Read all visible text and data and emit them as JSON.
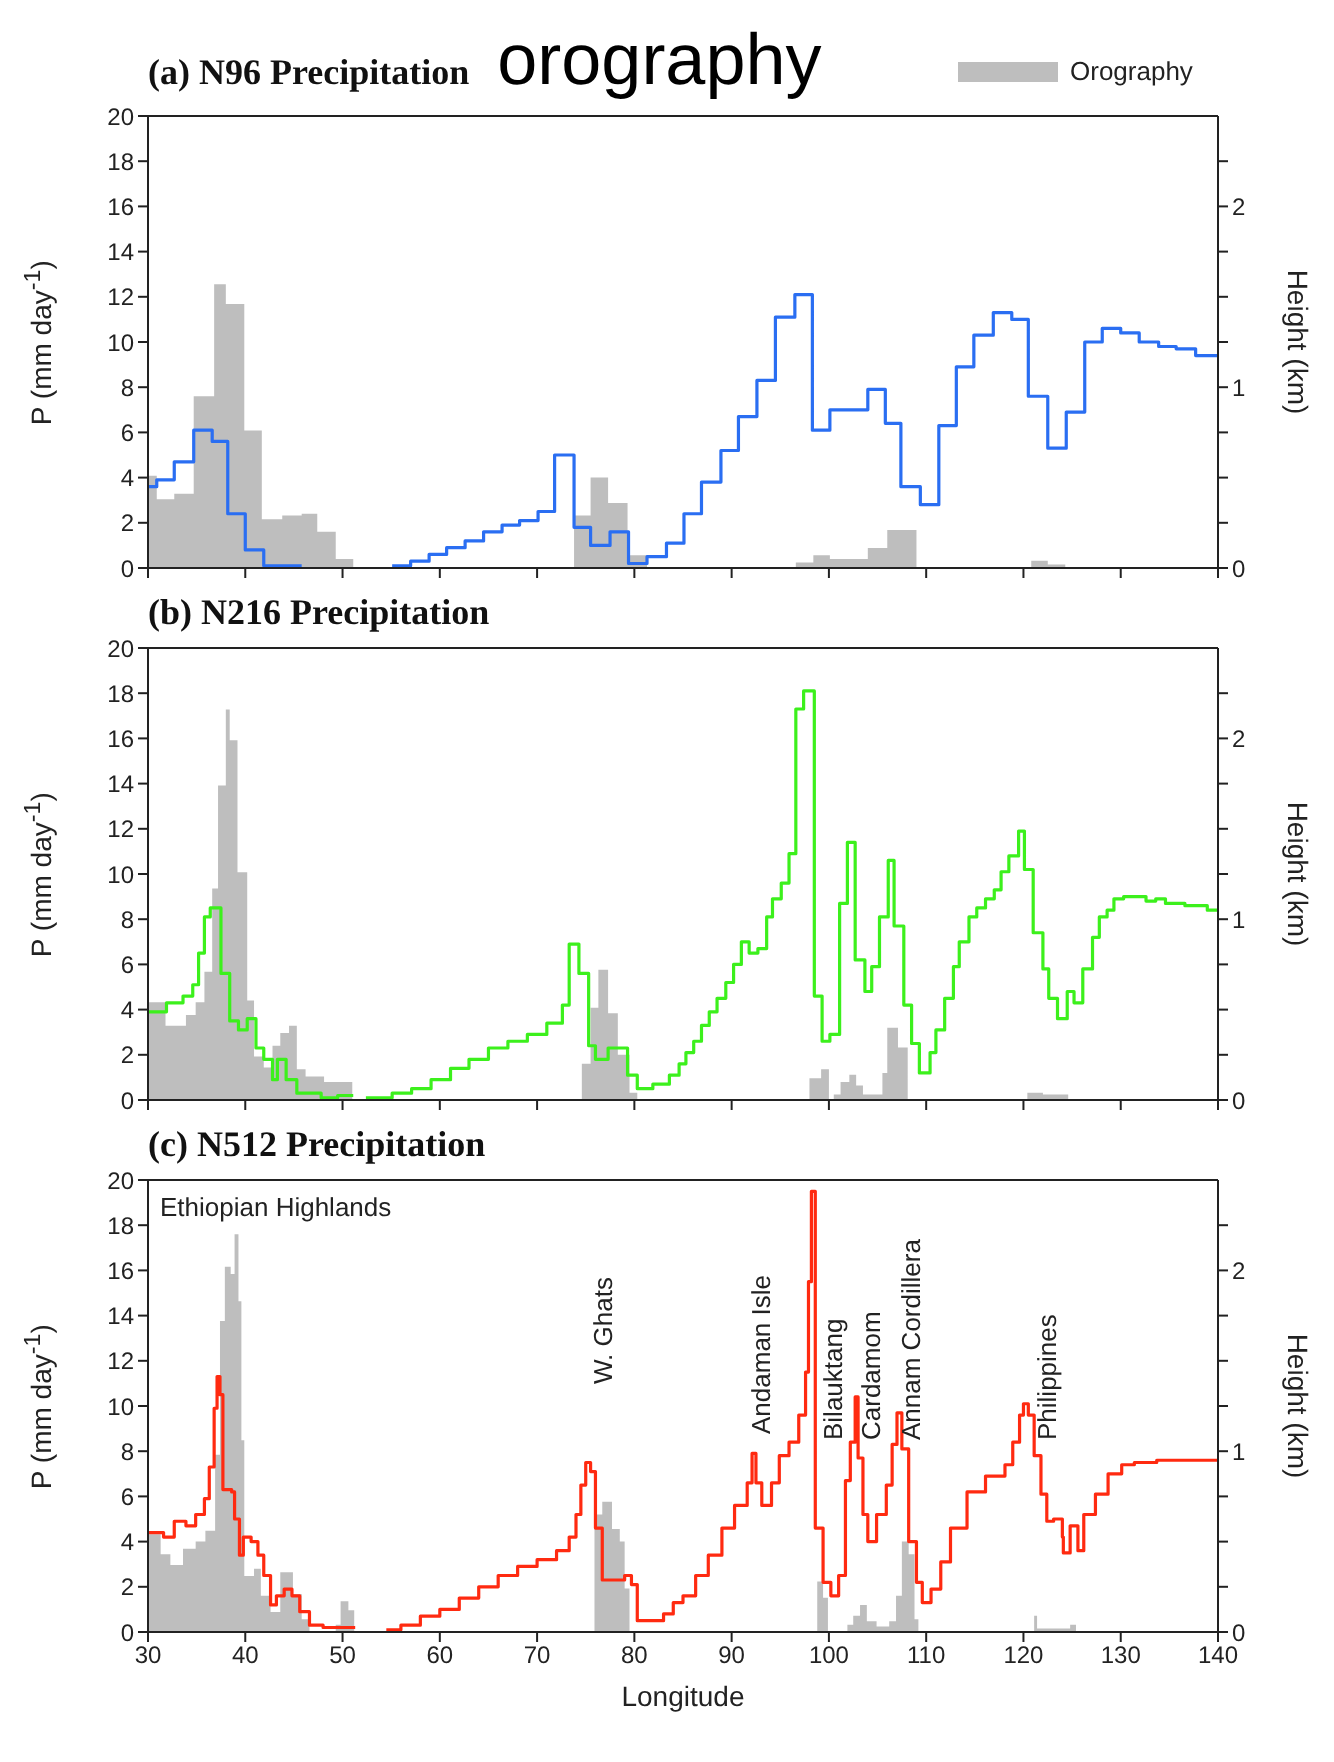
{
  "chart_data": [
    {
      "type": "step",
      "title": "(a) N96 Precipitation",
      "subtitle": "orography",
      "ylabel": "P (mm day$^{-1}$)",
      "y2label": "Height (km)",
      "xlim": [
        30,
        140
      ],
      "xticks": [
        30,
        40,
        50,
        60,
        70,
        80,
        90,
        100,
        110,
        120,
        130,
        140
      ],
      "ylim": [
        0,
        20
      ],
      "yticks": [
        0,
        2,
        4,
        6,
        8,
        10,
        12,
        14,
        16,
        18,
        20
      ],
      "y2lim": [
        0,
        2.5
      ],
      "y2ticks": [
        0,
        {
          "value": 0.25,
          "label": null
        },
        {
          "value": 0.5,
          "label": null
        },
        {
          "value": 0.75,
          "label": null
        },
        1,
        {
          "value": 1.25,
          "label": null
        },
        {
          "value": 1.5,
          "label": null
        },
        {
          "value": 1.75,
          "label": null
        },
        2,
        {
          "value": 2.25,
          "label": null
        }
      ],
      "tick_labels": "y",
      "legend": "top right",
      "series": [
        {
          "name": "Orography",
          "type": "area",
          "axis": "y2",
          "color": "#bebebe",
          "x": [
            30,
            30.9,
            32.7,
            34.7,
            36.8,
            38.0,
            39.9,
            41.7,
            43.8,
            45.8,
            47.4,
            49.3,
            51.1,
            73.8,
            75.5,
            77.3,
            79.3,
            81.3,
            96.6,
            98.4,
            100.1,
            104.0,
            106.0,
            109.0,
            120.8,
            122.5,
            124.3,
            140
          ],
          "values": [
            0.51,
            0.38,
            0.41,
            0.95,
            1.57,
            1.46,
            0.76,
            0.27,
            0.29,
            0.3,
            0.2,
            0.05,
            0,
            0.29,
            0.5,
            0.36,
            0.07,
            0,
            0.03,
            0.07,
            0.05,
            0.11,
            0.21,
            0,
            0.04,
            0.02,
            0,
            0
          ]
        },
        {
          "color": "#2a6ef2",
          "x": [
            30,
            30.9,
            32.7,
            34.7,
            36.6,
            38.2,
            40.0,
            41.9,
            45.8,
            50,
            55.1,
            57.0,
            58.9,
            60.7,
            62.6,
            64.5,
            66.4,
            68.2,
            70.1,
            71.8,
            73.8,
            75.5,
            77.5,
            79.4,
            81.3,
            83.3,
            85.1,
            86.9,
            88.9,
            90.7,
            92.6,
            94.5,
            96.5,
            98.3,
            100.1,
            104.0,
            105.8,
            107.4,
            109.4,
            111.3,
            113.1,
            114.9,
            116.9,
            118.8,
            120.5,
            122.5,
            124.4,
            126.3,
            128.1,
            130.0,
            131.9,
            133.9,
            135.7,
            137.7,
            140
          ],
          "values": [
            3.6,
            3.9,
            4.7,
            6.1,
            5.6,
            2.4,
            0.8,
            0.1,
            0.1,
            null,
            0.1,
            0.3,
            0.6,
            0.9,
            1.2,
            1.6,
            1.9,
            2.1,
            2.5,
            5.0,
            1.8,
            1.0,
            1.6,
            0.2,
            0.5,
            1.1,
            2.4,
            3.8,
            5.2,
            6.7,
            8.3,
            11.1,
            12.1,
            6.1,
            7.0,
            7.9,
            6.4,
            3.6,
            2.8,
            6.3,
            8.9,
            10.3,
            11.3,
            11.0,
            7.6,
            5.3,
            6.9,
            10.0,
            10.6,
            10.4,
            10.0,
            9.8,
            9.7,
            9.4,
            9.4
          ]
        }
      ]
    },
    {
      "type": "step",
      "title": "(b) N216 Precipitation",
      "ylabel": "P (mm day$^{-1}$)",
      "y2label": "Height (km)",
      "xlim": [
        30,
        140
      ],
      "xticks": [
        30,
        40,
        50,
        60,
        70,
        80,
        90,
        100,
        110,
        120,
        130,
        140
      ],
      "ylim": [
        0,
        20
      ],
      "yticks": [
        0,
        2,
        4,
        6,
        8,
        10,
        12,
        14,
        16,
        18,
        20
      ],
      "y2lim": [
        0,
        2.5
      ],
      "y2ticks": [
        0,
        {
          "value": 0.25,
          "label": null
        },
        {
          "value": 0.5,
          "label": null
        },
        {
          "value": 0.75,
          "label": null
        },
        1,
        {
          "value": 1.25,
          "label": null
        },
        {
          "value": 1.5,
          "label": null
        },
        {
          "value": 1.75,
          "label": null
        },
        2,
        {
          "value": 2.25,
          "label": null
        }
      ],
      "tick_labels": "y",
      "series": [
        {
          "type": "area",
          "axis": "y2",
          "color": "#bebebe",
          "x": [
            30,
            31.8,
            33.9,
            34.9,
            35.8,
            36.6,
            37.2,
            38.0,
            38.4,
            39.2,
            40.2,
            40.9,
            41.9,
            42.8,
            43.6,
            44.5,
            45.3,
            46.2,
            48.1,
            51.0,
            74.6,
            75.5,
            76.3,
            77.3,
            78.3,
            79.5,
            80.3,
            98.0,
            99.2,
            100.0,
            100.5,
            101.2,
            102.1,
            102.8,
            103.5,
            105.5,
            106.0,
            107.1,
            108.1,
            120.4,
            122.0,
            124.6,
            140
          ],
          "values": [
            0.54,
            0.41,
            0.47,
            0.54,
            0.71,
            1.17,
            1.74,
            2.16,
            1.99,
            1.26,
            0.55,
            0.24,
            0.18,
            0.3,
            0.37,
            0.41,
            0.17,
            0.13,
            0.1,
            0,
            0.2,
            0.51,
            0.72,
            0.48,
            0.25,
            0.04,
            0,
            0.12,
            0.17,
            0,
            0.03,
            0.1,
            0.14,
            0.08,
            0.03,
            0.15,
            0.4,
            0.29,
            0,
            0.04,
            0.03,
            0,
            0
          ]
        },
        {
          "color": "#3cf01c",
          "x": [
            30,
            31.9,
            33.6,
            34.6,
            35.2,
            35.8,
            36.4,
            37.5,
            38.4,
            39.3,
            40.2,
            41.1,
            41.9,
            42.8,
            43.3,
            44.2,
            45.3,
            47.8,
            49.5,
            51.1,
            51.8,
            52.4,
            55.1,
            57.1,
            59.1,
            61.1,
            63.0,
            65.0,
            67.0,
            69.0,
            71.0,
            72.6,
            73.3,
            74.3,
            75.3,
            76.0,
            77.3,
            79.3,
            80.3,
            81.9,
            83.6,
            84.6,
            85.3,
            86.1,
            86.9,
            87.7,
            88.5,
            89.4,
            90.2,
            91.0,
            91.8,
            92.7,
            93.6,
            94.2,
            95.1,
            95.9,
            96.6,
            97.4,
            98.5,
            99.3,
            100.1,
            101.1,
            101.9,
            102.7,
            103.7,
            104.4,
            105.2,
            106.1,
            106.7,
            107.7,
            108.5,
            109.3,
            110.4,
            111.0,
            111.9,
            112.8,
            113.4,
            114.4,
            115.2,
            116.1,
            117.0,
            117.7,
            118.5,
            119.5,
            120.1,
            121.0,
            122.0,
            122.6,
            123.5,
            124.5,
            125.2,
            126.1,
            127.1,
            127.8,
            128.6,
            129.3,
            130.3,
            132.6,
            133.6,
            134.6,
            136.6,
            138.9,
            140
          ],
          "values": [
            3.9,
            4.3,
            4.6,
            5.1,
            6.5,
            8.1,
            8.5,
            5.6,
            3.5,
            3.1,
            3.6,
            2.3,
            1.8,
            0.9,
            1.8,
            0.9,
            0.3,
            0.1,
            0.2,
            0.2,
            null,
            0.1,
            0.3,
            0.5,
            0.9,
            1.4,
            1.8,
            2.3,
            2.6,
            2.9,
            3.4,
            4.2,
            6.9,
            5.6,
            2.4,
            1.8,
            2.3,
            1.1,
            0.5,
            0.7,
            1.1,
            1.6,
            2.1,
            2.6,
            3.3,
            3.9,
            4.5,
            5.2,
            6.0,
            7.0,
            6.5,
            6.7,
            8.1,
            8.9,
            9.6,
            10.9,
            17.3,
            18.1,
            4.6,
            2.6,
            2.9,
            8.7,
            11.4,
            6.2,
            4.8,
            5.9,
            8.1,
            10.6,
            7.7,
            4.2,
            2.5,
            1.2,
            2.1,
            3.1,
            4.5,
            5.9,
            7.0,
            8.1,
            8.5,
            8.9,
            9.3,
            10.1,
            10.8,
            11.9,
            10.2,
            7.4,
            5.8,
            4.5,
            3.6,
            4.8,
            4.3,
            5.8,
            7.2,
            8.1,
            8.4,
            8.9,
            9.0,
            8.8,
            8.9,
            8.7,
            8.6,
            8.4,
            8.4
          ]
        }
      ]
    },
    {
      "type": "step",
      "title": "(c) N512 Precipitation",
      "xlabel": "Longitude",
      "ylabel": "P (mm day$^{-1}$)",
      "y2label": "Height (km)",
      "xlim": [
        30,
        140
      ],
      "xticks": [
        30,
        40,
        50,
        60,
        70,
        80,
        90,
        100,
        110,
        120,
        130,
        140
      ],
      "ylim": [
        0,
        20
      ],
      "yticks": [
        0,
        2,
        4,
        6,
        8,
        10,
        12,
        14,
        16,
        18,
        20
      ],
      "y2lim": [
        0,
        2.5
      ],
      "y2ticks": [
        0,
        {
          "value": 0.25,
          "label": null
        },
        {
          "value": 0.5,
          "label": null
        },
        {
          "value": 0.75,
          "label": null
        },
        1,
        {
          "value": 1.25,
          "label": null
        },
        {
          "value": 1.5,
          "label": null
        },
        {
          "value": 1.75,
          "label": null
        },
        2,
        {
          "value": 2.25,
          "label": null
        }
      ],
      "annotations": [
        "Ethiopian Highlands",
        "W. Ghats",
        "Andaman Isle",
        "Bilauktang",
        "Cardamom",
        "Annam Cordillera",
        "Philippines"
      ],
      "series": [
        {
          "type": "area",
          "axis": "y2",
          "color": "#bebebe",
          "x": [
            30,
            31.3,
            32.3,
            33.6,
            34.9,
            35.9,
            36.9,
            37.4,
            37.9,
            38.5,
            38.9,
            39.3,
            39.6,
            39.9,
            40.9,
            41.6,
            42.6,
            43.6,
            44.3,
            44.9,
            45.8,
            46.6,
            49.3,
            49.8,
            50.6,
            51.2,
            75.3,
            75.9,
            76.7,
            77.7,
            78.5,
            79.0,
            79.5,
            98.2,
            98.8,
            99.4,
            99.9,
            101.9,
            102.5,
            103.2,
            103.9,
            104.9,
            106.2,
            106.9,
            107.5,
            108.2,
            108.8,
            109.2,
            120.8,
            121.1,
            121.4,
            123.8,
            124.8,
            125.4,
            140
          ],
          "values": [
            0.54,
            0.43,
            0.37,
            0.46,
            0.5,
            0.56,
            0.98,
            1.72,
            2.02,
            1.98,
            2.2,
            1.83,
            1.06,
            0.31,
            0.35,
            0.2,
            0.11,
            0.33,
            0.33,
            0.21,
            0.07,
            0,
            0.04,
            0.17,
            0.12,
            0,
            0,
            0.65,
            0.72,
            0.57,
            0.5,
            0.24,
            0,
            0,
            0.28,
            0.19,
            0,
            0.04,
            0.09,
            0.15,
            0.06,
            0.03,
            0.06,
            0.2,
            0.5,
            0.43,
            0.07,
            0,
            0,
            0.09,
            0.02,
            0.02,
            0.04,
            0,
            0
          ]
        },
        {
          "color": "#ff2a10",
          "x": [
            30,
            31.6,
            32.7,
            33.9,
            34.9,
            35.8,
            36.3,
            36.8,
            37.1,
            37.4,
            37.7,
            38.6,
            38.9,
            39.4,
            39.8,
            40.6,
            41.3,
            41.9,
            42.6,
            43.2,
            44.0,
            44.8,
            45.6,
            46.6,
            48.0,
            50.0,
            51.3,
            53,
            54.5,
            56.0,
            58.0,
            60.0,
            62.0,
            64.0,
            66.0,
            68.0,
            70.0,
            72.0,
            73.3,
            74.0,
            74.5,
            75.0,
            75.5,
            76.0,
            76.7,
            78.3,
            79.0,
            79.7,
            80.3,
            81.7,
            83.0,
            84.0,
            85.0,
            86.3,
            87.6,
            89.0,
            90.3,
            91.6,
            92.1,
            92.5,
            93.1,
            93.7,
            94.1,
            94.9,
            95.9,
            96.9,
            97.6,
            97.9,
            98.2,
            98.6,
            99.4,
            100.2,
            101.0,
            101.7,
            102.2,
            102.7,
            103.0,
            103.5,
            104.0,
            104.9,
            105.9,
            106.5,
            107.0,
            107.5,
            108.2,
            109.0,
            109.6,
            110.5,
            111.5,
            112.5,
            114.2,
            116.1,
            118.1,
            118.9,
            119.6,
            120.0,
            120.5,
            121.1,
            121.8,
            122.4,
            123.1,
            124.0,
            124.1,
            124.8,
            125.6,
            126.2,
            127.4,
            128.7,
            130.1,
            131.4,
            133.7,
            136.7,
            140
          ],
          "values": [
            4.4,
            4.2,
            4.9,
            4.7,
            5.2,
            5.9,
            7.3,
            9.9,
            11.3,
            10.5,
            6.3,
            6.2,
            5.0,
            3.4,
            4.2,
            4.0,
            3.4,
            2.5,
            1.2,
            1.6,
            1.9,
            1.6,
            0.9,
            0.3,
            0.2,
            0.2,
            0.2,
            null,
            0.1,
            0.3,
            0.7,
            1.0,
            1.5,
            2.0,
            2.5,
            2.9,
            3.2,
            3.6,
            4.2,
            5.2,
            6.5,
            7.5,
            7.1,
            4.6,
            2.3,
            2.3,
            2.5,
            2.1,
            0.5,
            0.5,
            0.8,
            1.3,
            1.6,
            2.5,
            3.4,
            4.6,
            5.6,
            6.6,
            7.9,
            6.6,
            5.6,
            5.6,
            6.6,
            7.8,
            8.4,
            9.6,
            11.5,
            15.5,
            19.5,
            4.6,
            2.2,
            1.6,
            2.5,
            6.7,
            8.4,
            10.4,
            7.7,
            5.2,
            4.0,
            5.2,
            6.5,
            8.3,
            9.7,
            8.1,
            4.0,
            2.2,
            1.3,
            1.9,
            3.1,
            4.6,
            6.2,
            6.9,
            7.4,
            8.4,
            9.6,
            10.1,
            9.6,
            7.8,
            6.1,
            4.9,
            5.0,
            4.2,
            3.5,
            4.7,
            3.6,
            5.2,
            6.1,
            7.0,
            7.4,
            7.5,
            7.6,
            7.6,
            7.6
          ]
        }
      ]
    }
  ]
}
